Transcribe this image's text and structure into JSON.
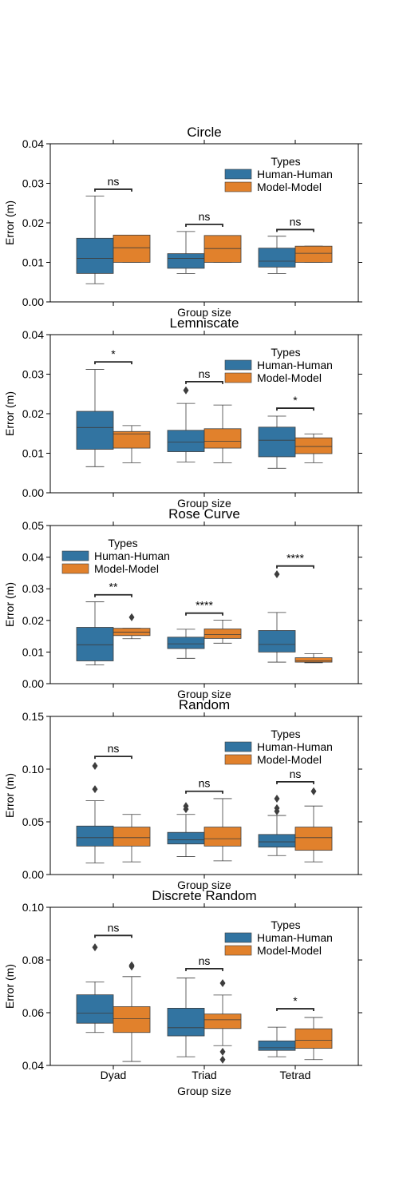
{
  "colors": {
    "human": "#3274a1",
    "model": "#e1812c",
    "outlier": "#3d3d3d",
    "axis": "#000000"
  },
  "legend_title": "Types",
  "x_axis_label": "Group size",
  "y_axis_label": "Error (m)",
  "chart_data": [
    {
      "type": "box",
      "title": "Circle",
      "xlabel": "Group size",
      "ylabel": "Error (m)",
      "ylim": [
        0,
        0.04
      ],
      "yticks": [
        "0.00",
        "0.01",
        "0.02",
        "0.03",
        "0.04"
      ],
      "legend": {
        "title": "Types",
        "entries": [
          "Human-Human",
          "Model-Model"
        ],
        "placement": "top-right"
      },
      "show_xticklabels": false,
      "categories": [
        "Dyad",
        "Triad",
        "Tetrad"
      ],
      "series": [
        {
          "name": "Human-Human",
          "boxes": [
            {
              "min": 0.0046,
              "q1": 0.0072,
              "median": 0.011,
              "q3": 0.0161,
              "max": 0.0268,
              "outliers": []
            },
            {
              "min": 0.0072,
              "q1": 0.0085,
              "median": 0.011,
              "q3": 0.0122,
              "max": 0.0178,
              "outliers": []
            },
            {
              "min": 0.0072,
              "q1": 0.0088,
              "median": 0.0103,
              "q3": 0.0136,
              "max": 0.0166,
              "outliers": []
            }
          ]
        },
        {
          "name": "Model-Model",
          "boxes": [
            {
              "min": 0.01,
              "q1": 0.01,
              "median": 0.0137,
              "q3": 0.0169,
              "max": 0.0169,
              "outliers": []
            },
            {
              "min": 0.01,
              "q1": 0.01,
              "median": 0.0135,
              "q3": 0.0168,
              "max": 0.0168,
              "outliers": []
            },
            {
              "min": 0.01,
              "q1": 0.01,
              "median": 0.0123,
              "q3": 0.0141,
              "max": 0.0141,
              "outliers": []
            }
          ]
        }
      ],
      "annotations": [
        {
          "category": "Dyad",
          "text": "ns",
          "y": 0.0285
        },
        {
          "category": "Triad",
          "text": "ns",
          "y": 0.0196
        },
        {
          "category": "Tetrad",
          "text": "ns",
          "y": 0.0183
        }
      ]
    },
    {
      "type": "box",
      "title": "Lemniscate",
      "xlabel": "Group size",
      "ylabel": "Error (m)",
      "ylim": [
        0,
        0.04
      ],
      "yticks": [
        "0.00",
        "0.01",
        "0.02",
        "0.03",
        "0.04"
      ],
      "legend": {
        "title": "Types",
        "entries": [
          "Human-Human",
          "Model-Model"
        ],
        "placement": "top-right"
      },
      "show_xticklabels": false,
      "categories": [
        "Dyad",
        "Triad",
        "Tetrad"
      ],
      "series": [
        {
          "name": "Human-Human",
          "boxes": [
            {
              "min": 0.0066,
              "q1": 0.011,
              "median": 0.0165,
              "q3": 0.0206,
              "max": 0.0312,
              "outliers": []
            },
            {
              "min": 0.0078,
              "q1": 0.0104,
              "median": 0.0128,
              "q3": 0.0158,
              "max": 0.0226,
              "outliers": [
                0.0259
              ]
            },
            {
              "min": 0.0062,
              "q1": 0.0091,
              "median": 0.0133,
              "q3": 0.0166,
              "max": 0.0194,
              "outliers": []
            }
          ]
        },
        {
          "name": "Model-Model",
          "boxes": [
            {
              "min": 0.0076,
              "q1": 0.0113,
              "median": 0.0149,
              "q3": 0.0155,
              "max": 0.017,
              "outliers": []
            },
            {
              "min": 0.0076,
              "q1": 0.0113,
              "median": 0.013,
              "q3": 0.0162,
              "max": 0.0222,
              "outliers": []
            },
            {
              "min": 0.0076,
              "q1": 0.0099,
              "median": 0.0117,
              "q3": 0.0139,
              "max": 0.0149,
              "outliers": []
            }
          ]
        }
      ],
      "annotations": [
        {
          "category": "Dyad",
          "text": "*",
          "y": 0.0331
        },
        {
          "category": "Triad",
          "text": "ns",
          "y": 0.0281
        },
        {
          "category": "Tetrad",
          "text": "*",
          "y": 0.0214
        }
      ]
    },
    {
      "type": "box",
      "title": "Rose Curve",
      "xlabel": "Group size",
      "ylabel": "Error (m)",
      "ylim": [
        0,
        0.05
      ],
      "yticks": [
        "0.00",
        "0.01",
        "0.02",
        "0.03",
        "0.04",
        "0.05"
      ],
      "legend": {
        "title": "Types",
        "entries": [
          "Human-Human",
          "Model-Model"
        ],
        "placement": "top-left"
      },
      "show_xticklabels": false,
      "categories": [
        "Dyad",
        "Triad",
        "Tetrad"
      ],
      "series": [
        {
          "name": "Human-Human",
          "boxes": [
            {
              "min": 0.0059,
              "q1": 0.0072,
              "median": 0.0123,
              "q3": 0.0178,
              "max": 0.0259,
              "outliers": []
            },
            {
              "min": 0.008,
              "q1": 0.0111,
              "median": 0.0126,
              "q3": 0.0147,
              "max": 0.0172,
              "outliers": []
            },
            {
              "min": 0.0068,
              "q1": 0.01,
              "median": 0.0124,
              "q3": 0.0168,
              "max": 0.0225,
              "outliers": [
                0.0346
              ]
            }
          ]
        },
        {
          "name": "Model-Model",
          "boxes": [
            {
              "min": 0.0142,
              "q1": 0.0152,
              "median": 0.0163,
              "q3": 0.0175,
              "max": 0.0175,
              "outliers": [
                0.021
              ]
            },
            {
              "min": 0.0128,
              "q1": 0.0143,
              "median": 0.0155,
              "q3": 0.0173,
              "max": 0.0201,
              "outliers": []
            },
            {
              "min": 0.0066,
              "q1": 0.0068,
              "median": 0.0072,
              "q3": 0.0082,
              "max": 0.0095,
              "outliers": []
            }
          ]
        }
      ],
      "annotations": [
        {
          "category": "Dyad",
          "text": "**",
          "y": 0.0281
        },
        {
          "category": "Triad",
          "text": "****",
          "y": 0.0223
        },
        {
          "category": "Tetrad",
          "text": "****",
          "y": 0.0372
        }
      ]
    },
    {
      "type": "box",
      "title": "Random",
      "xlabel": "Group size",
      "ylabel": "Error (m)",
      "ylim": [
        0,
        0.15
      ],
      "yticks": [
        "0.00",
        "0.05",
        "0.10",
        "0.15"
      ],
      "legend": {
        "title": "Types",
        "entries": [
          "Human-Human",
          "Model-Model"
        ],
        "placement": "top-right"
      },
      "show_xticklabels": false,
      "categories": [
        "Dyad",
        "Triad",
        "Tetrad"
      ],
      "series": [
        {
          "name": "Human-Human",
          "boxes": [
            {
              "min": 0.011,
              "q1": 0.027,
              "median": 0.035,
              "q3": 0.046,
              "max": 0.07,
              "outliers": [
                0.081,
                0.103
              ]
            },
            {
              "min": 0.017,
              "q1": 0.029,
              "median": 0.033,
              "q3": 0.04,
              "max": 0.057,
              "outliers": [
                0.062,
                0.065
              ]
            },
            {
              "min": 0.018,
              "q1": 0.026,
              "median": 0.031,
              "q3": 0.038,
              "max": 0.056,
              "outliers": [
                0.06,
                0.063,
                0.072
              ]
            }
          ]
        },
        {
          "name": "Model-Model",
          "boxes": [
            {
              "min": 0.012,
              "q1": 0.027,
              "median": 0.035,
              "q3": 0.045,
              "max": 0.057,
              "outliers": []
            },
            {
              "min": 0.013,
              "q1": 0.027,
              "median": 0.034,
              "q3": 0.045,
              "max": 0.072,
              "outliers": []
            },
            {
              "min": 0.012,
              "q1": 0.023,
              "median": 0.035,
              "q3": 0.045,
              "max": 0.065,
              "outliers": [
                0.079
              ]
            }
          ]
        }
      ],
      "annotations": [
        {
          "category": "Dyad",
          "text": "ns",
          "y": 0.112
        },
        {
          "category": "Triad",
          "text": "ns",
          "y": 0.079
        },
        {
          "category": "Tetrad",
          "text": "ns",
          "y": 0.088
        }
      ]
    },
    {
      "type": "box",
      "title": "Discrete Random",
      "xlabel": "Group size",
      "ylabel": "Error (m)",
      "ylim": [
        0.04,
        0.1
      ],
      "yticks": [
        "0.04",
        "0.06",
        "0.08",
        "0.10"
      ],
      "legend": {
        "title": "Types",
        "entries": [
          "Human-Human",
          "Model-Model"
        ],
        "placement": "top-right"
      },
      "show_xticklabels": true,
      "categories": [
        "Dyad",
        "Triad",
        "Tetrad"
      ],
      "series": [
        {
          "name": "Human-Human",
          "boxes": [
            {
              "min": 0.0525,
              "q1": 0.056,
              "median": 0.0598,
              "q3": 0.0668,
              "max": 0.0717,
              "outliers": [
                0.0848
              ]
            },
            {
              "min": 0.0433,
              "q1": 0.0512,
              "median": 0.0543,
              "q3": 0.0617,
              "max": 0.0732,
              "outliers": []
            },
            {
              "min": 0.0433,
              "q1": 0.0457,
              "median": 0.0467,
              "q3": 0.0493,
              "max": 0.0545,
              "outliers": []
            }
          ]
        },
        {
          "name": "Model-Model",
          "boxes": [
            {
              "min": 0.0415,
              "q1": 0.0525,
              "median": 0.0577,
              "q3": 0.0623,
              "max": 0.0737,
              "outliers": [
                0.0775,
                0.078
              ]
            },
            {
              "min": 0.0475,
              "q1": 0.054,
              "median": 0.0573,
              "q3": 0.0595,
              "max": 0.0667,
              "outliers": [
                0.0712,
                0.0452,
                0.0422
              ]
            },
            {
              "min": 0.0422,
              "q1": 0.0465,
              "median": 0.0495,
              "q3": 0.0539,
              "max": 0.0582,
              "outliers": []
            }
          ]
        }
      ],
      "annotations": [
        {
          "category": "Dyad",
          "text": "ns",
          "y": 0.0893
        },
        {
          "category": "Triad",
          "text": "ns",
          "y": 0.0767
        },
        {
          "category": "Tetrad",
          "text": "*",
          "y": 0.0615
        }
      ]
    }
  ]
}
